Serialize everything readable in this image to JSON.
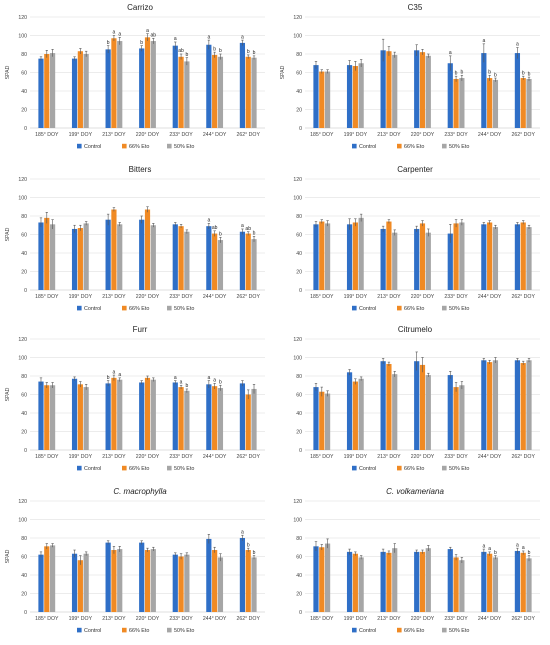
{
  "colors": {
    "control": "#2F6FC7",
    "eto66": "#F08A24",
    "eto50": "#A6A6A6",
    "grid": "#D9D9D9",
    "error": "#555555"
  },
  "chart_data": [
    {
      "type": "bar",
      "title": "Carrizo",
      "italic": false,
      "ylabel": "SPAD",
      "ylim": [
        0,
        120
      ],
      "yticks": [
        0,
        20,
        40,
        60,
        80,
        100,
        120
      ],
      "categories": [
        "185° DOY",
        "199° DOY",
        "213° DOY",
        "220° DOY",
        "233° DOY",
        "244° DOY",
        "262° DOY"
      ],
      "series": [
        {
          "name": "Control",
          "values": [
            75,
            75,
            85,
            86,
            89,
            90,
            92
          ],
          "errors": [
            2,
            2,
            4,
            3,
            4,
            5,
            3
          ],
          "labels": [
            "",
            "",
            "b",
            "b",
            "a",
            "a",
            "a"
          ]
        },
        {
          "name": "66% Eto",
          "values": [
            80,
            83,
            97,
            98,
            77,
            79,
            77
          ],
          "errors": [
            4,
            3,
            3,
            4,
            3,
            3,
            2
          ],
          "labels": [
            "",
            "",
            "a",
            "a",
            "ab",
            "b",
            "b"
          ]
        },
        {
          "name": "50% Eto",
          "values": [
            81,
            80,
            94,
            94,
            72,
            77,
            76
          ],
          "errors": [
            4,
            3,
            4,
            3,
            4,
            3,
            2
          ],
          "labels": [
            "",
            "",
            "a",
            "ab",
            "b",
            "b",
            "b"
          ]
        }
      ]
    },
    {
      "type": "bar",
      "title": "C35",
      "italic": false,
      "ylabel": "SPAD",
      "ylim": [
        0,
        120
      ],
      "yticks": [
        0,
        20,
        40,
        60,
        80,
        100,
        120
      ],
      "categories": [
        "185° DOY",
        "199° DOY",
        "213° DOY",
        "220° DOY",
        "233° DOY",
        "244° DOY",
        "262° DOY"
      ],
      "series": [
        {
          "name": "Control",
          "values": [
            68,
            68,
            84,
            84,
            70,
            81,
            81
          ],
          "errors": [
            4,
            5,
            12,
            6,
            8,
            10,
            6
          ],
          "labels": [
            "",
            "",
            "",
            "",
            "a",
            "a",
            "a"
          ]
        },
        {
          "name": "66% Eto",
          "values": [
            61,
            67,
            83,
            82,
            53,
            54,
            54
          ],
          "errors": [
            2,
            5,
            5,
            3,
            3,
            3,
            2
          ],
          "labels": [
            "",
            "",
            "",
            "",
            "b",
            "b",
            "b"
          ]
        },
        {
          "name": "50% Eto",
          "values": [
            61,
            70,
            79,
            78,
            54,
            52,
            53
          ],
          "errors": [
            2,
            4,
            3,
            2,
            3,
            2,
            2
          ],
          "labels": [
            "",
            "",
            "",
            "",
            "b",
            "b",
            "b"
          ]
        }
      ]
    },
    {
      "type": "bar",
      "title": "Bitters",
      "italic": false,
      "ylabel": "SPAD",
      "ylim": [
        0,
        120
      ],
      "yticks": [
        0,
        20,
        40,
        60,
        80,
        100,
        120
      ],
      "categories": [
        "185° DOY",
        "199° DOY",
        "213° DOY",
        "220° DOY",
        "233° DOY",
        "244° DOY",
        "262° DOY"
      ],
      "series": [
        {
          "name": "Control",
          "values": [
            73,
            66,
            76,
            76,
            71,
            69,
            63
          ],
          "errors": [
            5,
            4,
            6,
            4,
            2,
            3,
            3
          ],
          "labels": [
            "",
            "",
            "",
            "",
            "",
            "a",
            "a"
          ]
        },
        {
          "name": "66% Eto",
          "values": [
            78,
            67,
            87,
            87,
            69,
            61,
            61
          ],
          "errors": [
            6,
            3,
            2,
            3,
            2,
            3,
            2
          ],
          "labels": [
            "",
            "",
            "",
            "",
            "",
            "ab",
            "ab"
          ]
        },
        {
          "name": "50% Eto",
          "values": [
            71,
            72,
            71,
            70,
            63,
            54,
            55
          ],
          "errors": [
            5,
            2,
            2,
            2,
            2,
            3,
            3
          ],
          "labels": [
            "",
            "",
            "",
            "",
            "",
            "b",
            "b"
          ]
        }
      ]
    },
    {
      "type": "bar",
      "title": "Carpenter",
      "italic": false,
      "ylabel": "",
      "ylim": [
        0,
        120
      ],
      "yticks": [
        0,
        20,
        40,
        60,
        80,
        100,
        120
      ],
      "categories": [
        "185° DOY",
        "199° DOY",
        "213° DOY",
        "220° DOY",
        "233° DOY",
        "244° DOY",
        "262° DOY"
      ],
      "series": [
        {
          "name": "Control",
          "values": [
            71,
            71,
            66,
            66,
            61,
            71,
            71
          ],
          "errors": [
            3,
            6,
            3,
            3,
            10,
            2,
            2
          ],
          "labels": [
            "",
            "",
            "",
            "",
            "",
            "",
            ""
          ]
        },
        {
          "name": "66% Eto",
          "values": [
            74,
            73,
            74,
            72,
            72,
            73,
            73
          ],
          "errors": [
            2,
            4,
            2,
            3,
            4,
            2,
            2
          ],
          "labels": [
            "",
            "",
            "",
            "",
            "",
            "",
            ""
          ]
        },
        {
          "name": "50% Eto",
          "values": [
            72,
            78,
            62,
            62,
            73,
            68,
            68
          ],
          "errors": [
            3,
            4,
            3,
            4,
            3,
            2,
            2
          ],
          "labels": [
            "",
            "",
            "",
            "",
            "",
            "",
            ""
          ]
        }
      ]
    },
    {
      "type": "bar",
      "title": "Furr",
      "italic": false,
      "ylabel": "SPAD",
      "ylim": [
        0,
        120
      ],
      "yticks": [
        0,
        20,
        40,
        60,
        80,
        100,
        120
      ],
      "categories": [
        "185° DOY",
        "199° DOY",
        "213° DOY",
        "220° DOY",
        "233° DOY",
        "244° DOY",
        "262° DOY"
      ],
      "series": [
        {
          "name": "Control",
          "values": [
            74,
            77,
            72,
            73,
            73,
            71,
            72
          ],
          "errors": [
            4,
            2,
            3,
            2,
            2,
            4,
            3
          ],
          "labels": [
            "",
            "",
            "b",
            "",
            "a",
            "a",
            ""
          ]
        },
        {
          "name": "66% Eto",
          "values": [
            70,
            71,
            78,
            78,
            68,
            69,
            60
          ],
          "errors": [
            3,
            3,
            3,
            2,
            2,
            3,
            5
          ],
          "labels": [
            "",
            "",
            "a",
            "",
            "a",
            "a",
            ""
          ]
        },
        {
          "name": "50% Eto",
          "values": [
            70,
            68,
            76,
            76,
            64,
            67,
            66
          ],
          "errors": [
            3,
            3,
            2,
            2,
            2,
            3,
            5
          ],
          "labels": [
            "",
            "",
            "a",
            "",
            "b",
            "b",
            ""
          ]
        }
      ]
    },
    {
      "type": "bar",
      "title": "Citrumelo",
      "italic": false,
      "ylabel": "",
      "ylim": [
        0,
        120
      ],
      "yticks": [
        0,
        20,
        40,
        60,
        80,
        100,
        120
      ],
      "categories": [
        "185° DOY",
        "199° DOY",
        "213° DOY",
        "220° DOY",
        "233° DOY",
        "244° DOY",
        "262° DOY"
      ],
      "series": [
        {
          "name": "Control",
          "values": [
            68,
            84,
            96,
            96,
            81,
            97,
            97
          ],
          "errors": [
            4,
            3,
            3,
            10,
            4,
            2,
            2
          ],
          "labels": [
            "",
            "",
            "",
            "",
            "",
            "",
            ""
          ]
        },
        {
          "name": "66% Eto",
          "values": [
            63,
            74,
            93,
            92,
            68,
            95,
            94
          ],
          "errors": [
            5,
            3,
            2,
            8,
            5,
            2,
            2
          ],
          "labels": [
            "",
            "",
            "",
            "",
            "",
            "",
            ""
          ]
        },
        {
          "name": "50% Eto",
          "values": [
            61,
            77,
            82,
            81,
            70,
            97,
            97
          ],
          "errors": [
            3,
            2,
            3,
            2,
            4,
            3,
            2
          ],
          "labels": [
            "",
            "",
            "",
            "",
            "",
            "",
            ""
          ]
        }
      ]
    },
    {
      "type": "bar",
      "title": "C. macrophylla",
      "italic": true,
      "ylabel": "SPAD",
      "ylim": [
        0,
        120
      ],
      "yticks": [
        0,
        20,
        40,
        60,
        80,
        100,
        120
      ],
      "categories": [
        "185° DOY",
        "199° DOY",
        "213° DOY",
        "220° DOY",
        "233° DOY",
        "244° DOY",
        "262° DOY"
      ],
      "series": [
        {
          "name": "Control",
          "values": [
            62,
            63,
            75,
            75,
            62,
            79,
            80
          ],
          "errors": [
            3,
            4,
            2,
            2,
            2,
            5,
            3
          ],
          "labels": [
            "",
            "",
            "",
            "",
            "",
            "",
            "a"
          ]
        },
        {
          "name": "66% Eto",
          "values": [
            71,
            56,
            67,
            67,
            60,
            67,
            67
          ],
          "errors": [
            3,
            5,
            4,
            2,
            3,
            3,
            2
          ],
          "labels": [
            "",
            "",
            "",
            "",
            "",
            "",
            "b"
          ]
        },
        {
          "name": "50% Eto",
          "values": [
            72,
            63,
            68,
            68,
            62,
            59,
            59
          ],
          "errors": [
            2,
            2,
            3,
            2,
            2,
            4,
            2
          ],
          "labels": [
            "",
            "",
            "",
            "",
            "",
            "",
            "b"
          ]
        }
      ]
    },
    {
      "type": "bar",
      "title": "C. volkameriana",
      "italic": true,
      "ylabel": "",
      "ylim": [
        0,
        120
      ],
      "yticks": [
        0,
        20,
        40,
        60,
        80,
        100,
        120
      ],
      "categories": [
        "185° DOY",
        "199° DOY",
        "213° DOY",
        "220° DOY",
        "233° DOY",
        "244° DOY",
        "262° DOY"
      ],
      "series": [
        {
          "name": "Control",
          "values": [
            71,
            65,
            65,
            65,
            68,
            65,
            66
          ],
          "errors": [
            5,
            3,
            3,
            2,
            2,
            3,
            3
          ],
          "labels": [
            "",
            "",
            "",
            "",
            "",
            "a",
            "a"
          ]
        },
        {
          "name": "66% Eto",
          "values": [
            70,
            63,
            64,
            65,
            59,
            63,
            64
          ],
          "errors": [
            3,
            2,
            2,
            2,
            3,
            2,
            2
          ],
          "labels": [
            "",
            "",
            "",
            "",
            "",
            "a",
            "a"
          ]
        },
        {
          "name": "50% Eto",
          "values": [
            74,
            59,
            69,
            69,
            56,
            59,
            58
          ],
          "errors": [
            5,
            2,
            5,
            3,
            3,
            2,
            3
          ],
          "labels": [
            "",
            "",
            "",
            "",
            "",
            "b",
            "b"
          ]
        }
      ]
    }
  ]
}
